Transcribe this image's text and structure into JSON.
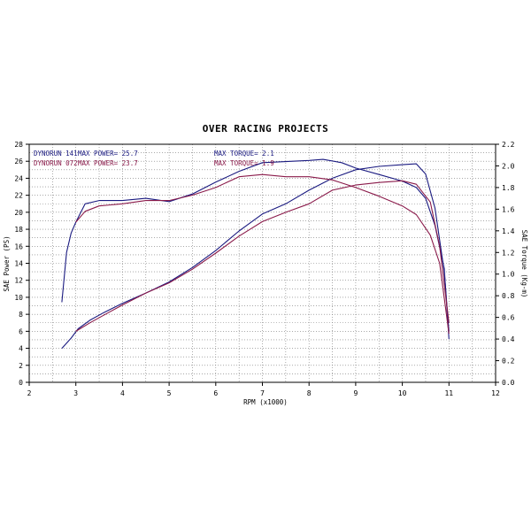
{
  "chart_data": {
    "type": "line",
    "title": "OVER RACING PROJECTS",
    "xlabel": "RPM (x1000)",
    "ylabel": "SAE Power (PS)",
    "y2label": "SAE Torque (Kg-m)",
    "xlim": [
      2,
      12
    ],
    "ylim": [
      0,
      28
    ],
    "y2lim": [
      0,
      2.2
    ],
    "x_ticks": [
      2,
      3,
      4,
      5,
      6,
      7,
      8,
      9,
      10,
      11,
      12
    ],
    "y_ticks": [
      0,
      2,
      4,
      6,
      8,
      10,
      12,
      14,
      16,
      18,
      20,
      22,
      24,
      26,
      28
    ],
    "y2_ticks": [
      "0.0",
      "0.2",
      "0.4",
      "0.6",
      "0.8",
      "1.0",
      "1.2",
      "1.4",
      "1.6",
      "1.8",
      "2.0",
      "2.2"
    ],
    "grid": true,
    "legend": [
      {
        "run": "DYNORUN 141",
        "power": "MAX POWER= 25.7",
        "torque": "MAX TORQUE= 2.1",
        "color": "#1a1a80"
      },
      {
        "run": "DYNORUN 072",
        "power": "MAX POWER= 23.7",
        "torque": "MAX TORQUE= 1.9",
        "color": "#8a1a4a"
      }
    ],
    "series": [
      {
        "axis": "power",
        "color": "#1a1a80",
        "x": [
          2.7,
          2.9,
          3.05,
          3.3,
          3.6,
          4.0,
          4.5,
          5.0,
          5.5,
          6.0,
          6.5,
          7.0,
          7.5,
          8.0,
          8.5,
          9.0,
          9.5,
          10.0,
          10.3,
          10.5,
          10.7,
          10.9,
          11.0
        ],
        "y": [
          4.0,
          5.2,
          6.3,
          7.3,
          8.2,
          9.3,
          10.5,
          11.8,
          13.5,
          15.5,
          17.8,
          19.8,
          21.0,
          22.6,
          24.0,
          25.0,
          25.4,
          25.6,
          25.7,
          24.5,
          20.5,
          13.0,
          6.0
        ]
      },
      {
        "axis": "torque",
        "color": "#1a1a80",
        "x": [
          2.7,
          2.8,
          2.9,
          3.0,
          3.2,
          3.5,
          4.0,
          4.5,
          5.0,
          5.5,
          6.0,
          6.5,
          7.0,
          7.5,
          8.0,
          8.3,
          8.7,
          9.0,
          9.5,
          10.0,
          10.3,
          10.5,
          10.7,
          10.9,
          11.0
        ],
        "y": [
          0.74,
          1.2,
          1.38,
          1.48,
          1.65,
          1.68,
          1.68,
          1.7,
          1.67,
          1.74,
          1.85,
          1.95,
          2.03,
          2.04,
          2.05,
          2.06,
          2.03,
          1.98,
          1.92,
          1.86,
          1.8,
          1.7,
          1.45,
          1.05,
          0.4
        ]
      },
      {
        "axis": "power",
        "color": "#8a1a4a",
        "x": [
          3.0,
          3.3,
          3.7,
          4.0,
          4.5,
          5.0,
          5.5,
          6.0,
          6.5,
          7.0,
          7.5,
          8.0,
          8.5,
          9.0,
          9.5,
          10.0,
          10.3,
          10.6,
          10.8,
          11.0
        ],
        "y": [
          6.0,
          7.0,
          8.2,
          9.1,
          10.5,
          11.7,
          13.3,
          15.2,
          17.2,
          18.9,
          20.0,
          21.0,
          22.6,
          23.2,
          23.5,
          23.7,
          23.3,
          21.2,
          16.0,
          7.0
        ]
      },
      {
        "axis": "torque",
        "color": "#8a1a4a",
        "x": [
          3.0,
          3.2,
          3.5,
          4.0,
          4.5,
          5.0,
          5.5,
          6.0,
          6.5,
          7.0,
          7.5,
          8.0,
          8.5,
          9.0,
          9.5,
          10.0,
          10.3,
          10.6,
          10.8,
          11.0
        ],
        "y": [
          1.48,
          1.58,
          1.63,
          1.65,
          1.68,
          1.68,
          1.73,
          1.8,
          1.9,
          1.92,
          1.9,
          1.9,
          1.87,
          1.8,
          1.72,
          1.63,
          1.55,
          1.36,
          1.1,
          0.45
        ]
      }
    ]
  }
}
